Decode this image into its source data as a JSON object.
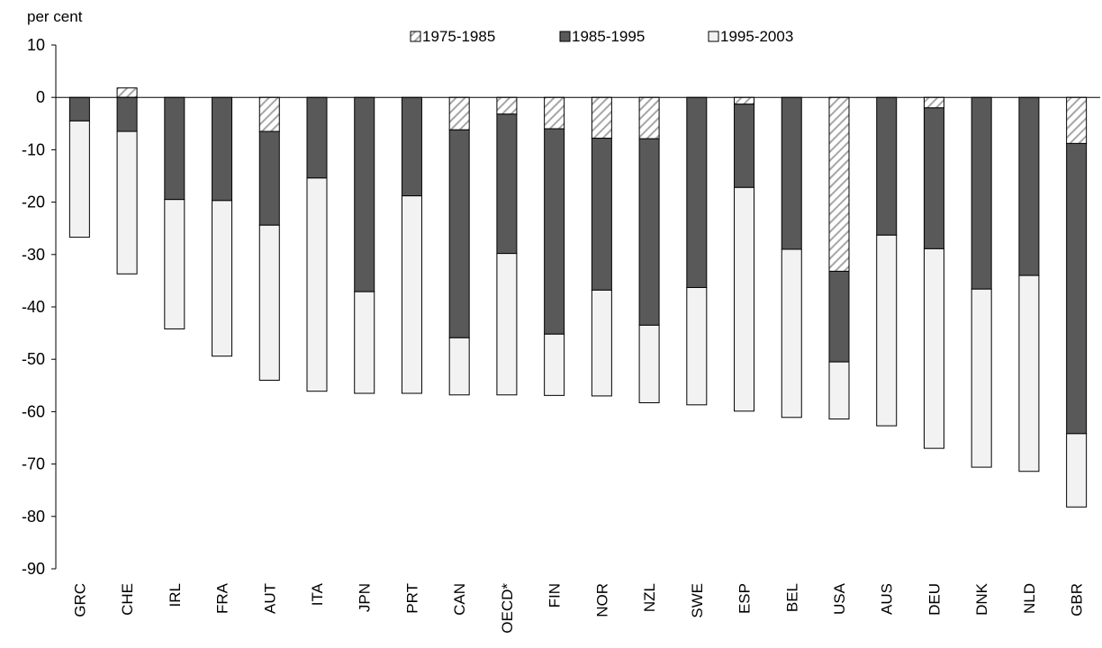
{
  "chart_data": {
    "type": "bar",
    "stacked": true,
    "ylabel": "per cent",
    "ylim": [
      -90,
      10
    ],
    "yticks": [
      10,
      0,
      -10,
      -20,
      -30,
      -40,
      -50,
      -60,
      -70,
      -80,
      -90
    ],
    "legend_position": "top",
    "categories": [
      "GRC",
      "CHE",
      "IRL",
      "FRA",
      "AUT",
      "ITA",
      "JPN",
      "PRT",
      "CAN",
      "OECD*",
      "FIN",
      "NOR",
      "NZL",
      "SWE",
      "ESP",
      "BEL",
      "USA",
      "AUS",
      "DEU",
      "DNK",
      "NLD",
      "GBR"
    ],
    "series": [
      {
        "name": "1975-1985",
        "style": "hatched",
        "values": [
          0,
          1.8,
          0,
          0,
          -6.5,
          0,
          0,
          0,
          -6.2,
          -3.2,
          -6.0,
          -7.8,
          -7.9,
          0,
          -1.3,
          0,
          -33.2,
          0,
          -2.0,
          0,
          0,
          -8.8
        ]
      },
      {
        "name": "1985-1995",
        "style": "dark",
        "values": [
          -4.5,
          -6.5,
          -19.5,
          -19.7,
          -17.9,
          -15.4,
          -37.1,
          -18.8,
          -39.7,
          -26.6,
          -39.2,
          -29.0,
          -35.6,
          -36.3,
          -15.9,
          -29.0,
          -17.3,
          -26.3,
          -26.9,
          -36.6,
          -34.0,
          -55.4
        ]
      },
      {
        "name": "1995-2003",
        "style": "light",
        "values": [
          -22.2,
          -27.2,
          -24.7,
          -29.7,
          -29.6,
          -40.7,
          -19.4,
          -37.7,
          -10.9,
          -27.0,
          -11.7,
          -20.2,
          -14.8,
          -22.4,
          -42.7,
          -32.1,
          -10.9,
          -36.4,
          -38.1,
          -34.0,
          -37.4,
          -14.0
        ]
      }
    ],
    "colors": {
      "dark": "#595959",
      "light": "#f2f2f2",
      "hatch_base": "#ffffff",
      "hatch_line": "#a6a6a6",
      "stroke": "#000000"
    }
  }
}
